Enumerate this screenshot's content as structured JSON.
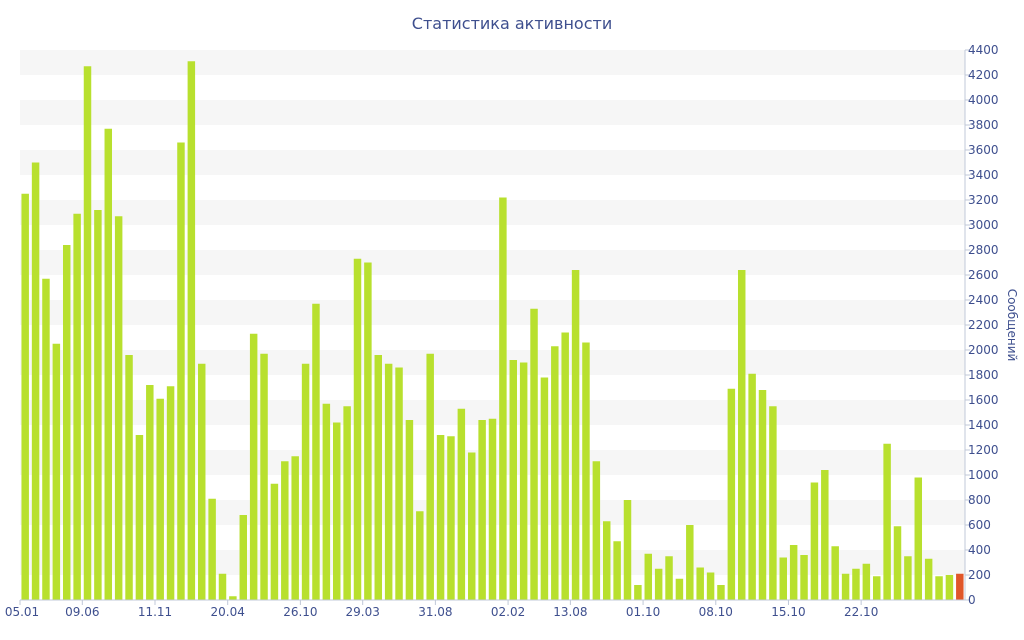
{
  "chart_data": {
    "type": "bar",
    "title": "Статистика активности",
    "ylabel": "Сообщений",
    "ylim": [
      0,
      4400
    ],
    "ytick_step": 200,
    "grid": "alternating-bands",
    "y_axis_side": "right",
    "colors": {
      "bar": "#b8e02e",
      "last_bar": "#e0572a",
      "axis_text": "#3e4f8e",
      "band": "#f6f6f6"
    },
    "x_tick_labels": [
      {
        "index": 0,
        "label": "05.01"
      },
      {
        "index": 6,
        "label": "09.06"
      },
      {
        "index": 13,
        "label": "11.11"
      },
      {
        "index": 20,
        "label": "20.04"
      },
      {
        "index": 27,
        "label": "26.10"
      },
      {
        "index": 33,
        "label": "29.03"
      },
      {
        "index": 40,
        "label": "31.08"
      },
      {
        "index": 47,
        "label": "02.02"
      },
      {
        "index": 53,
        "label": "13.08"
      },
      {
        "index": 60,
        "label": "01.10"
      },
      {
        "index": 67,
        "label": "08.10"
      },
      {
        "index": 74,
        "label": "15.10"
      },
      {
        "index": 81,
        "label": "22.10"
      }
    ],
    "values": [
      3250,
      3500,
      2570,
      2050,
      2840,
      3090,
      4270,
      3120,
      3770,
      3070,
      1960,
      1320,
      1720,
      1610,
      1710,
      3660,
      4310,
      1890,
      810,
      210,
      30,
      680,
      2130,
      1970,
      930,
      1110,
      1150,
      1890,
      2370,
      1570,
      1420,
      1550,
      2730,
      2700,
      1960,
      1890,
      1860,
      1440,
      710,
      1970,
      1320,
      1310,
      1530,
      1180,
      1440,
      1450,
      3220,
      1920,
      1900,
      2330,
      1780,
      2030,
      2140,
      2640,
      2060,
      1110,
      630,
      470,
      800,
      120,
      370,
      250,
      350,
      170,
      600,
      260,
      220,
      120,
      1690,
      2640,
      1810,
      1680,
      1550,
      340,
      440,
      360,
      940,
      1040,
      430,
      210,
      250,
      290,
      190,
      1250,
      590,
      350,
      980,
      330,
      190,
      200,
      210
    ]
  }
}
